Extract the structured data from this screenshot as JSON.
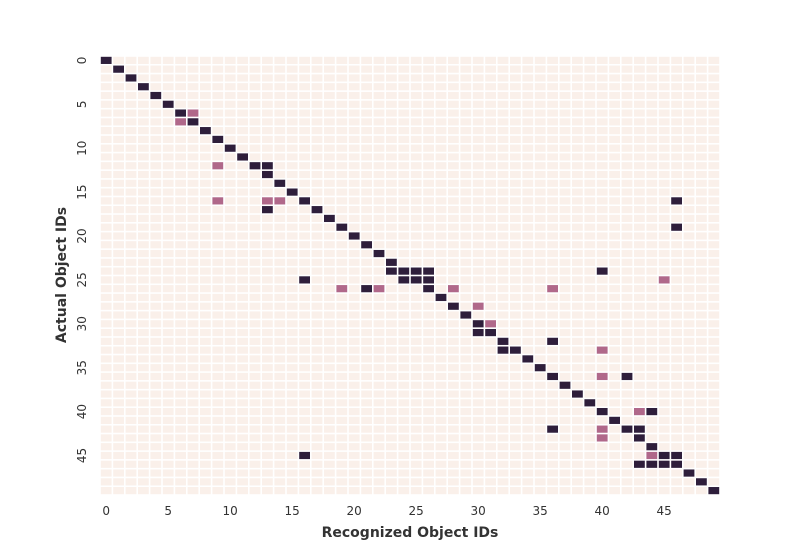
{
  "chart_data": {
    "type": "heatmap",
    "title": "",
    "xlabel": "Recognized Object IDs",
    "ylabel": "Actual Object IDs",
    "n_cols": 50,
    "n_rows": 50,
    "x_ticks": [
      0,
      5,
      10,
      15,
      20,
      25,
      30,
      35,
      40,
      45
    ],
    "y_ticks": [
      0,
      5,
      10,
      15,
      20,
      25,
      30,
      35,
      40,
      45
    ],
    "value_levels": {
      "none": 0,
      "low": 1,
      "high": 2
    },
    "colors": {
      "none": "#faf0ea",
      "low": "#b0688a",
      "high": "#2e1e3b",
      "gap": "#ffffff"
    },
    "grid": true,
    "cells": [
      [
        0,
        0,
        2
      ],
      [
        1,
        1,
        2
      ],
      [
        2,
        2,
        2
      ],
      [
        3,
        3,
        2
      ],
      [
        4,
        4,
        2
      ],
      [
        5,
        5,
        2
      ],
      [
        6,
        6,
        2
      ],
      [
        6,
        7,
        1
      ],
      [
        7,
        6,
        1
      ],
      [
        7,
        7,
        2
      ],
      [
        8,
        8,
        2
      ],
      [
        9,
        9,
        2
      ],
      [
        10,
        10,
        2
      ],
      [
        11,
        11,
        2
      ],
      [
        12,
        9,
        1
      ],
      [
        12,
        12,
        2
      ],
      [
        12,
        13,
        2
      ],
      [
        13,
        13,
        2
      ],
      [
        14,
        14,
        2
      ],
      [
        15,
        15,
        2
      ],
      [
        16,
        9,
        1
      ],
      [
        16,
        13,
        1
      ],
      [
        16,
        14,
        1
      ],
      [
        16,
        16,
        2
      ],
      [
        16,
        46,
        2
      ],
      [
        17,
        13,
        2
      ],
      [
        17,
        17,
        2
      ],
      [
        18,
        18,
        2
      ],
      [
        19,
        19,
        2
      ],
      [
        19,
        46,
        2
      ],
      [
        20,
        20,
        2
      ],
      [
        21,
        21,
        2
      ],
      [
        22,
        22,
        2
      ],
      [
        23,
        23,
        2
      ],
      [
        24,
        23,
        2
      ],
      [
        24,
        24,
        2
      ],
      [
        24,
        25,
        2
      ],
      [
        24,
        26,
        2
      ],
      [
        24,
        40,
        2
      ],
      [
        25,
        16,
        2
      ],
      [
        25,
        24,
        2
      ],
      [
        25,
        25,
        2
      ],
      [
        25,
        26,
        2
      ],
      [
        25,
        45,
        1
      ],
      [
        26,
        19,
        1
      ],
      [
        26,
        21,
        2
      ],
      [
        26,
        22,
        1
      ],
      [
        26,
        26,
        2
      ],
      [
        26,
        28,
        1
      ],
      [
        26,
        36,
        1
      ],
      [
        27,
        27,
        2
      ],
      [
        28,
        28,
        2
      ],
      [
        28,
        30,
        1
      ],
      [
        29,
        29,
        2
      ],
      [
        30,
        30,
        2
      ],
      [
        30,
        31,
        1
      ],
      [
        31,
        30,
        2
      ],
      [
        31,
        31,
        2
      ],
      [
        32,
        32,
        2
      ],
      [
        32,
        36,
        2
      ],
      [
        33,
        32,
        2
      ],
      [
        33,
        33,
        2
      ],
      [
        33,
        40,
        1
      ],
      [
        34,
        34,
        2
      ],
      [
        35,
        35,
        2
      ],
      [
        36,
        36,
        2
      ],
      [
        36,
        40,
        1
      ],
      [
        36,
        42,
        2
      ],
      [
        37,
        37,
        2
      ],
      [
        38,
        38,
        2
      ],
      [
        39,
        39,
        2
      ],
      [
        40,
        40,
        2
      ],
      [
        40,
        43,
        1
      ],
      [
        40,
        44,
        2
      ],
      [
        41,
        41,
        2
      ],
      [
        42,
        36,
        2
      ],
      [
        42,
        40,
        1
      ],
      [
        42,
        42,
        2
      ],
      [
        42,
        43,
        2
      ],
      [
        43,
        40,
        1
      ],
      [
        43,
        43,
        2
      ],
      [
        44,
        44,
        2
      ],
      [
        45,
        16,
        2
      ],
      [
        45,
        44,
        1
      ],
      [
        45,
        45,
        2
      ],
      [
        45,
        46,
        2
      ],
      [
        46,
        43,
        2
      ],
      [
        46,
        44,
        2
      ],
      [
        46,
        45,
        2
      ],
      [
        46,
        46,
        2
      ],
      [
        47,
        47,
        2
      ],
      [
        48,
        48,
        2
      ],
      [
        49,
        49,
        2
      ]
    ]
  }
}
